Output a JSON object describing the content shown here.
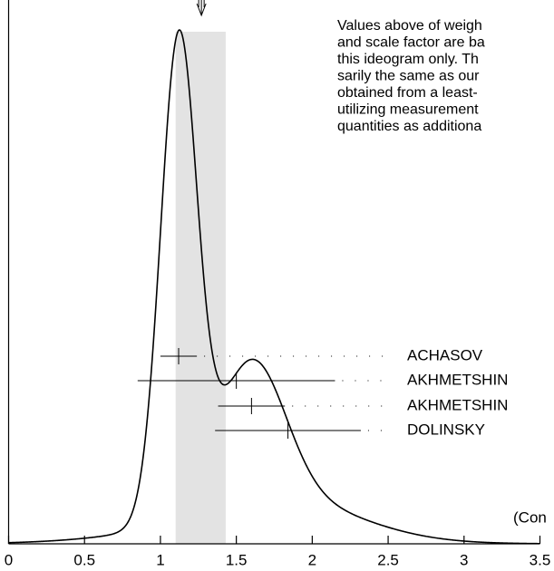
{
  "chart_data": {
    "type": "ideogram",
    "note_lines": [
      "Values above of weigh",
      "and scale factor are ba",
      "this ideogram only.  Th",
      "sarily the same as our",
      "obtained from a least-",
      "utilizing measurement",
      "quantities as additiona"
    ],
    "footer": "(Con",
    "measurements": [
      {
        "name": "ACHASOV",
        "value": 1.12,
        "error": 0.12
      },
      {
        "name": "AKHMETSHIN",
        "value": 1.5,
        "error": 0.65
      },
      {
        "name": "AKHMETSHIN",
        "value": 1.6,
        "error": 0.22
      },
      {
        "name": "DOLINSKY",
        "value": 1.84,
        "error": 0.48
      }
    ],
    "average_band": [
      1.1,
      1.43
    ],
    "average_arrow": 1.27,
    "xlim": [
      0,
      3.5
    ],
    "xticks": [
      0,
      0.5,
      1,
      1.5,
      2,
      2.5,
      3,
      3.5
    ]
  }
}
